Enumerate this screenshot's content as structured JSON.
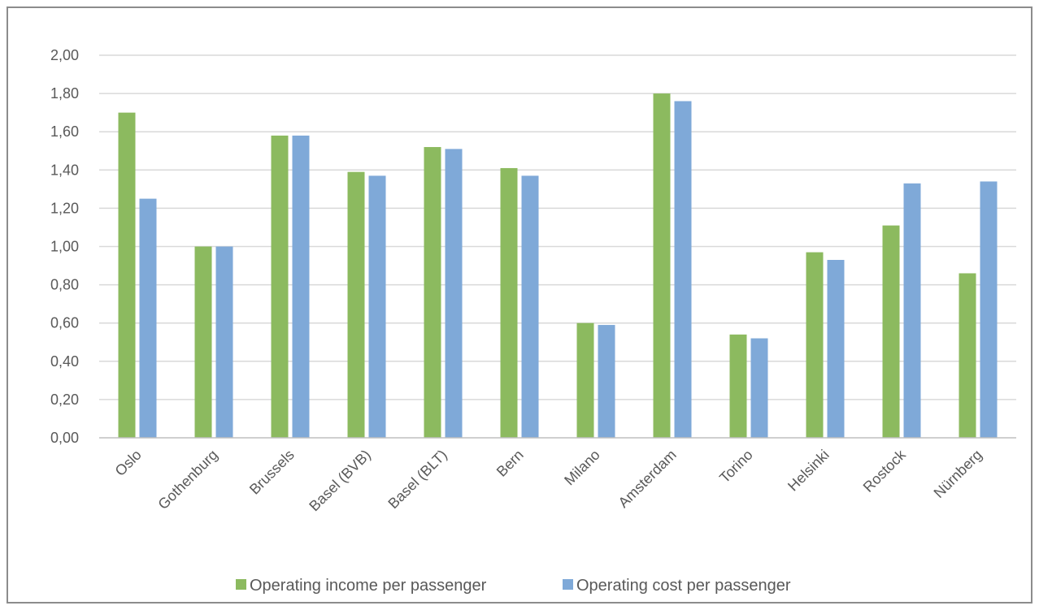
{
  "chart_data": {
    "type": "bar",
    "categories": [
      "Oslo",
      "Gothenburg",
      "Brussels",
      "Basel (BVB)",
      "Basel (BLT)",
      "Bern",
      "Milano",
      "Amsterdam",
      "Torino",
      "Helsinki",
      "Rostock",
      "Nürnberg"
    ],
    "series": [
      {
        "name": "Operating income per passenger",
        "color": "#8cba5f",
        "values": [
          1.7,
          1.0,
          1.58,
          1.39,
          1.52,
          1.41,
          0.6,
          1.8,
          0.54,
          0.97,
          1.11,
          0.86
        ]
      },
      {
        "name": "Operating cost per passenger",
        "color": "#7fa9d8",
        "values": [
          1.25,
          1.0,
          1.58,
          1.37,
          1.51,
          1.37,
          0.59,
          1.76,
          0.52,
          0.93,
          1.33,
          1.34
        ]
      }
    ],
    "title": "",
    "xlabel": "",
    "ylabel": "",
    "ylim": [
      0,
      2
    ],
    "yticks": [
      "0,00",
      "0,20",
      "0,40",
      "0,60",
      "0,80",
      "1,00",
      "1,20",
      "1,40",
      "1,60",
      "1,80",
      "2,00"
    ],
    "grid": true,
    "legend_position": "bottom"
  }
}
